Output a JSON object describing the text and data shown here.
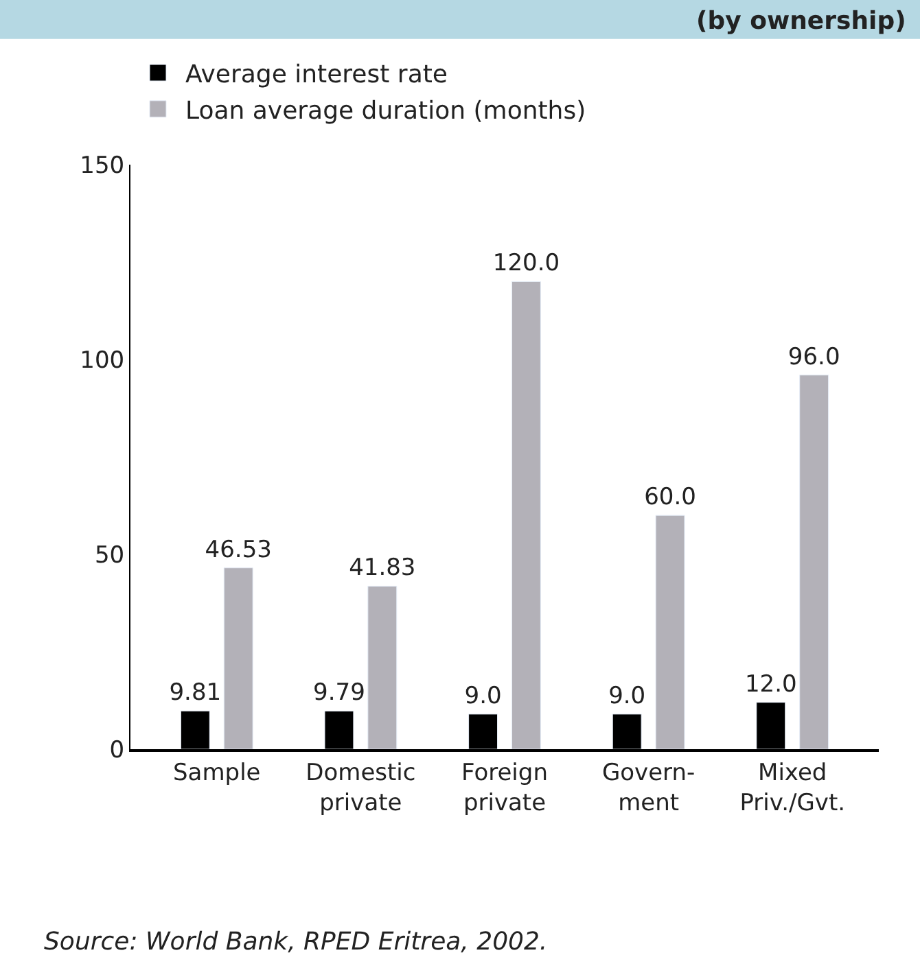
{
  "chart_data": {
    "type": "bar",
    "title": "(by ownership)",
    "categories": [
      "Sample",
      "Domestic\nprivate",
      "Foreign\nprivate",
      "Govern-\nment",
      "Mixed\nPriv./Gvt."
    ],
    "series": [
      {
        "name": "Average interest rate",
        "color": "#000000",
        "values": [
          9.81,
          9.79,
          9.0,
          9.0,
          12.0
        ],
        "value_labels": [
          "9.81",
          "9.79",
          "9.0",
          "9.0",
          "12.0"
        ]
      },
      {
        "name": "Loan average duration (months)",
        "color": "#b3b1b8",
        "values": [
          46.53,
          41.83,
          120.0,
          60.0,
          96.0
        ],
        "value_labels": [
          "46.53",
          "41.83",
          "120.0",
          "60.0",
          "96.0"
        ]
      }
    ],
    "ylim": [
      0,
      150
    ],
    "yticks": [
      0,
      50,
      100,
      150
    ],
    "legend": "top left",
    "annotations": [
      "Source: World Bank, RPED Eritrea, 2002."
    ]
  }
}
